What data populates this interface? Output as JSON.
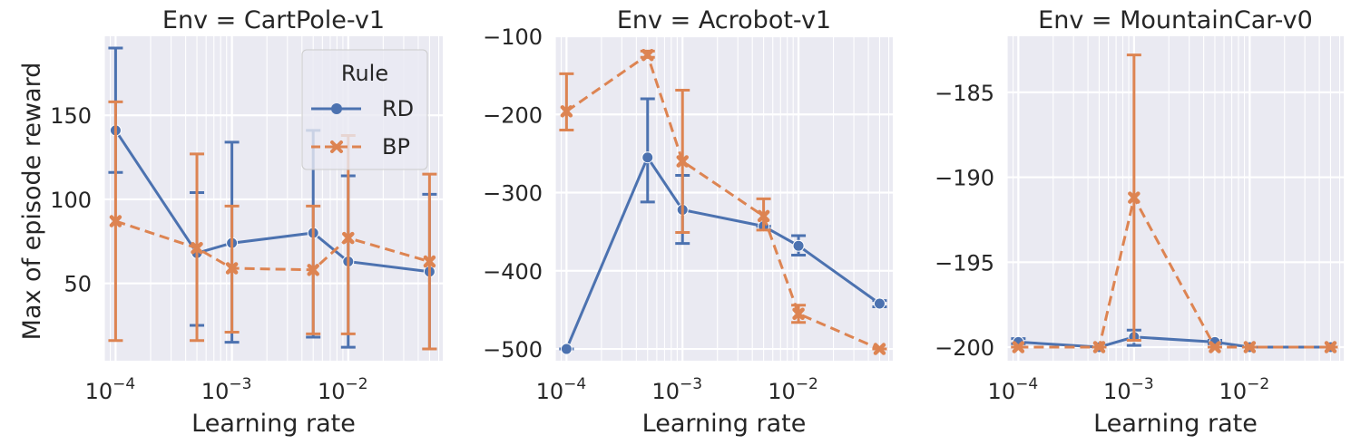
{
  "figure": {
    "ylabel": "Max of episode reward",
    "xlabel": "Learning rate"
  },
  "legend": {
    "title": "Rule",
    "entries": [
      "RD",
      "BP"
    ]
  },
  "colors": {
    "RD": "#4c72b0",
    "BP": "#dd8452",
    "panel_bg": "#eaeaf2",
    "grid": "#ffffff"
  },
  "chart_data": [
    {
      "type": "line",
      "title": "Env = CartPole-v1",
      "xlabel": "Learning rate",
      "ylabel": "Max of episode reward",
      "xscale": "log",
      "x": [
        0.0001,
        0.0005,
        0.001,
        0.005,
        0.01,
        0.05
      ],
      "x_ticks": [
        0.0001,
        0.001,
        0.01
      ],
      "x_tick_labels": [
        "10^-4",
        "10^-3",
        "10^-2"
      ],
      "xlim": [
        8e-05,
        0.065
      ],
      "ylim": [
        4,
        197
      ],
      "y_ticks": [
        50,
        100,
        150
      ],
      "y_tick_labels": [
        "50",
        "100",
        "150"
      ],
      "grid": true,
      "legend_position": "upper-right",
      "series": [
        {
          "name": "RD",
          "marker": "circle",
          "linestyle": "solid",
          "values": [
            141,
            68,
            74,
            80,
            63,
            57
          ],
          "err_low": [
            116,
            25,
            15,
            18,
            12,
            11
          ],
          "err_high": [
            190,
            104,
            134,
            141,
            114,
            103
          ]
        },
        {
          "name": "BP",
          "marker": "x",
          "linestyle": "dashed",
          "values": [
            87,
            71,
            59,
            58,
            77,
            63
          ],
          "err_low": [
            16,
            16,
            21,
            20,
            20,
            11
          ],
          "err_high": [
            158,
            127,
            96,
            96,
            138,
            115
          ]
        }
      ]
    },
    {
      "type": "line",
      "title": "Env = Acrobot-v1",
      "xlabel": "Learning rate",
      "xscale": "log",
      "x": [
        0.0001,
        0.0005,
        0.001,
        0.005,
        0.01,
        0.05
      ],
      "x_ticks": [
        0.0001,
        0.001,
        0.01
      ],
      "x_tick_labels": [
        "10^-4",
        "10^-3",
        "10^-2"
      ],
      "xlim": [
        8e-05,
        0.065
      ],
      "ylim": [
        -515,
        -100
      ],
      "y_ticks": [
        -500,
        -400,
        -300,
        -200,
        -100
      ],
      "y_tick_labels": [
        "−500",
        "−400",
        "−300",
        "−200",
        "−100"
      ],
      "grid": true,
      "series": [
        {
          "name": "RD",
          "marker": "circle",
          "linestyle": "solid",
          "values": [
            -500,
            -255,
            -322,
            -343,
            -368,
            -442
          ],
          "err_low": [
            -500,
            -312,
            -365,
            -343,
            -380,
            -446
          ],
          "err_high": [
            -500,
            -180,
            -278,
            -343,
            -355,
            -438
          ]
        },
        {
          "name": "BP",
          "marker": "x",
          "linestyle": "dashed",
          "values": [
            -196,
            -124,
            -260,
            -330,
            -455,
            -500
          ],
          "err_low": [
            -220,
            -127,
            -351,
            -348,
            -466,
            -500
          ],
          "err_high": [
            -148,
            -119,
            -169,
            -308,
            -444,
            -500
          ]
        }
      ]
    },
    {
      "type": "line",
      "title": "Env = MountainCar-v0",
      "xlabel": "Learning rate",
      "xscale": "log",
      "x": [
        0.0001,
        0.0005,
        0.001,
        0.005,
        0.01,
        0.05
      ],
      "x_ticks": [
        0.0001,
        0.001,
        0.01
      ],
      "x_tick_labels": [
        "10^-4",
        "10^-3",
        "10^-2"
      ],
      "xlim": [
        8e-05,
        0.065
      ],
      "ylim": [
        -200.8,
        -181.7
      ],
      "y_ticks": [
        -200,
        -195,
        -190,
        -185
      ],
      "y_tick_labels": [
        "−200",
        "−195",
        "−190",
        "−185"
      ],
      "grid": true,
      "series": [
        {
          "name": "RD",
          "marker": "circle",
          "linestyle": "solid",
          "values": [
            -199.7,
            -200,
            -199.4,
            -199.7,
            -200,
            -200
          ],
          "err_low": [
            -199.8,
            -200,
            -199.9,
            -199.8,
            -200,
            -200
          ],
          "err_high": [
            -199.5,
            -200,
            -199.0,
            -199.6,
            -200,
            -200
          ]
        },
        {
          "name": "BP",
          "marker": "x",
          "linestyle": "dashed",
          "values": [
            -200,
            -200,
            -191.2,
            -200,
            -200,
            -200
          ],
          "err_low": [
            -200,
            -200,
            -199.6,
            -200,
            -200,
            -200
          ],
          "err_high": [
            -200,
            -200,
            -182.8,
            -200,
            -200,
            -200
          ]
        }
      ]
    }
  ]
}
